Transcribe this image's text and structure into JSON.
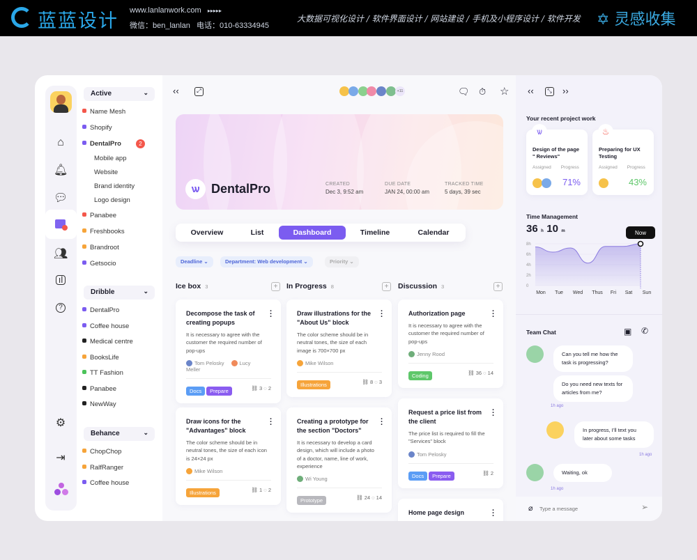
{
  "banner": {
    "brand": "蓝蓝设计",
    "url": "www.lanlanwork.com",
    "arrows": "▸▸▸▸▸",
    "wechat": "微信：ben_lanlan",
    "phone": "电话：010-63334945",
    "slogan": "大数据可视化设计 / 软件界面设计 / 网站建设 / 手机及小程序设计 / 软件开发",
    "collect": "灵感收集"
  },
  "sidebar": {
    "groups": [
      {
        "label": "Active",
        "items": [
          {
            "label": "Name Mesh",
            "color": "#f4574b"
          },
          {
            "label": "Shopify",
            "color": "#7b5cf0"
          },
          {
            "label": "DentalPro",
            "color": "#7b5cf0",
            "badge": "2",
            "children": [
              "Mobile app",
              "Website",
              "Brand identity",
              "Logo design"
            ]
          },
          {
            "label": "Panabee",
            "color": "#f4574b"
          },
          {
            "label": "Freshbooks",
            "color": "#f6a43a"
          },
          {
            "label": "Brandroot",
            "color": "#f6a43a"
          },
          {
            "label": "Getsocio",
            "color": "#7b5cf0"
          }
        ]
      },
      {
        "label": "Dribble",
        "items": [
          {
            "label": "DentalPro",
            "color": "#7b5cf0"
          },
          {
            "label": "Coffee house",
            "color": "#7b5cf0"
          },
          {
            "label": "Medical centre",
            "color": "#222222"
          },
          {
            "label": "BooksLife",
            "color": "#f6a43a"
          },
          {
            "label": "TT Fashion",
            "color": "#4cc35a"
          },
          {
            "label": "Panabee",
            "color": "#222222"
          },
          {
            "label": "NewWay",
            "color": "#222222"
          }
        ]
      },
      {
        "label": "Behance",
        "items": [
          {
            "label": "ChopChop",
            "color": "#f6a43a"
          },
          {
            "label": "RalfRanger",
            "color": "#f6a43a"
          },
          {
            "label": "Coffee house",
            "color": "#7b5cf0"
          }
        ]
      }
    ]
  },
  "header": {
    "avatars_more": "+11"
  },
  "project": {
    "name": "DentalPro",
    "created_label": "CREATED",
    "created": "Dec 3, 9:52 am",
    "due_label": "DUE DATE",
    "due": "JAN 24, 00:00 am",
    "tracked_label": "TRACKED TIME",
    "tracked": "5 days, 39 sec"
  },
  "tabs": [
    "Overview",
    "List",
    "Dashboard",
    "Timeline",
    "Calendar"
  ],
  "active_tab": "Dashboard",
  "filters": [
    "Deadline",
    "Department: Web development",
    "Priority"
  ],
  "columns": [
    {
      "title": "Ice box",
      "count": "3",
      "cards": [
        {
          "title": "Decompose the task of creating popups",
          "desc": "It is necessary to agree with the customer the required number of pop-ups",
          "people": [
            "Tom Pelosky",
            "Lucy Meller"
          ],
          "tags": [
            "Docs",
            "Prepare"
          ],
          "links": "3",
          "comments": "2"
        },
        {
          "title": "Draw icons for the \"Advantages\" block",
          "desc": "The color scheme should be in neutral tones, the size of each icon is 24×24 px",
          "people": [
            "Mike Wilson"
          ],
          "tags": [
            "Illustrations"
          ],
          "links": "1",
          "comments": "2"
        }
      ]
    },
    {
      "title": "In Progress",
      "count": "8",
      "cards": [
        {
          "title": "Draw illustrations for the \"About Us\" block",
          "desc": "The color scheme should be in neutral tones, the size of each image is 700×700 px",
          "people": [
            "Mike Wilson"
          ],
          "tags": [
            "Illustrations"
          ],
          "links": "8",
          "comments": "3"
        },
        {
          "title": "Creating a prototype for the section \"Doctors\"",
          "desc": "It is necessary to develop a card design, which will include a photo of a doctor, name, line of work, experience",
          "people": [
            "Wi Young"
          ],
          "tags": [
            "Prototype"
          ],
          "links": "24",
          "comments": "14"
        }
      ]
    },
    {
      "title": "Discussion",
      "count": "3",
      "cards": [
        {
          "title": "Authorization page",
          "desc": "It is necessary to agree with the customer the required number of pop-ups",
          "people": [
            "Jenny Rood"
          ],
          "tags": [
            "Coding"
          ],
          "links": "36",
          "comments": "14"
        },
        {
          "title": "Request a price list from the client",
          "desc": "The price list is required to fill the \"Services\" block",
          "people": [
            "Tom Pelosky"
          ],
          "tags": [
            "Docs",
            "Prepare"
          ],
          "links": "2",
          "comments": ""
        },
        {
          "title": "Home page design",
          "desc": "",
          "people": [],
          "tags": [],
          "links": "",
          "comments": ""
        }
      ]
    }
  ],
  "tag_colors": {
    "Docs": "#5b9df5",
    "Prepare": "#8a5cf0",
    "Illustrations": "#f6a43a",
    "Prototype": "#b8b8bd",
    "Coding": "#5ec76a"
  },
  "right": {
    "recent_title": "Your recent project work",
    "recent": [
      {
        "title": "Design of the page \" Reviews\"",
        "assigned_label": "Assigned",
        "progress_label": "Progress",
        "progress": "71%",
        "color": "#7b5cf0"
      },
      {
        "title": "Preparing for UX Testing",
        "assigned_label": "Assigned",
        "progress_label": "Progress",
        "progress": "43%",
        "color": "#5ec76a"
      }
    ],
    "time_title": "Time Management",
    "hours": "36",
    "h": "h",
    "minutes": "10",
    "m": "m",
    "chat_title": "Team Chat",
    "messages": [
      {
        "text": "Can you tell me how the task is progressing?"
      },
      {
        "text": "Do you need new texts for articles from me?",
        "time": "1h ago"
      },
      {
        "text": "In progress, I'll text you later about some tasks",
        "time": "1h ago"
      },
      {
        "text": "Waiting, ok",
        "time": "1h ago"
      }
    ],
    "input_placeholder": "Type a message"
  },
  "chart_data": {
    "type": "area",
    "categories": [
      "Mon",
      "Tue",
      "Wed",
      "Thus",
      "Fri",
      "Sat",
      "Sun"
    ],
    "values": [
      7.4,
      6.4,
      7.2,
      4.3,
      7.5,
      7.5,
      8
    ],
    "yticks": [
      "0",
      "2h",
      "4h",
      "6h",
      "8h"
    ],
    "ylim": [
      0,
      8
    ],
    "marker": "Now",
    "color": "#8b7be0"
  }
}
